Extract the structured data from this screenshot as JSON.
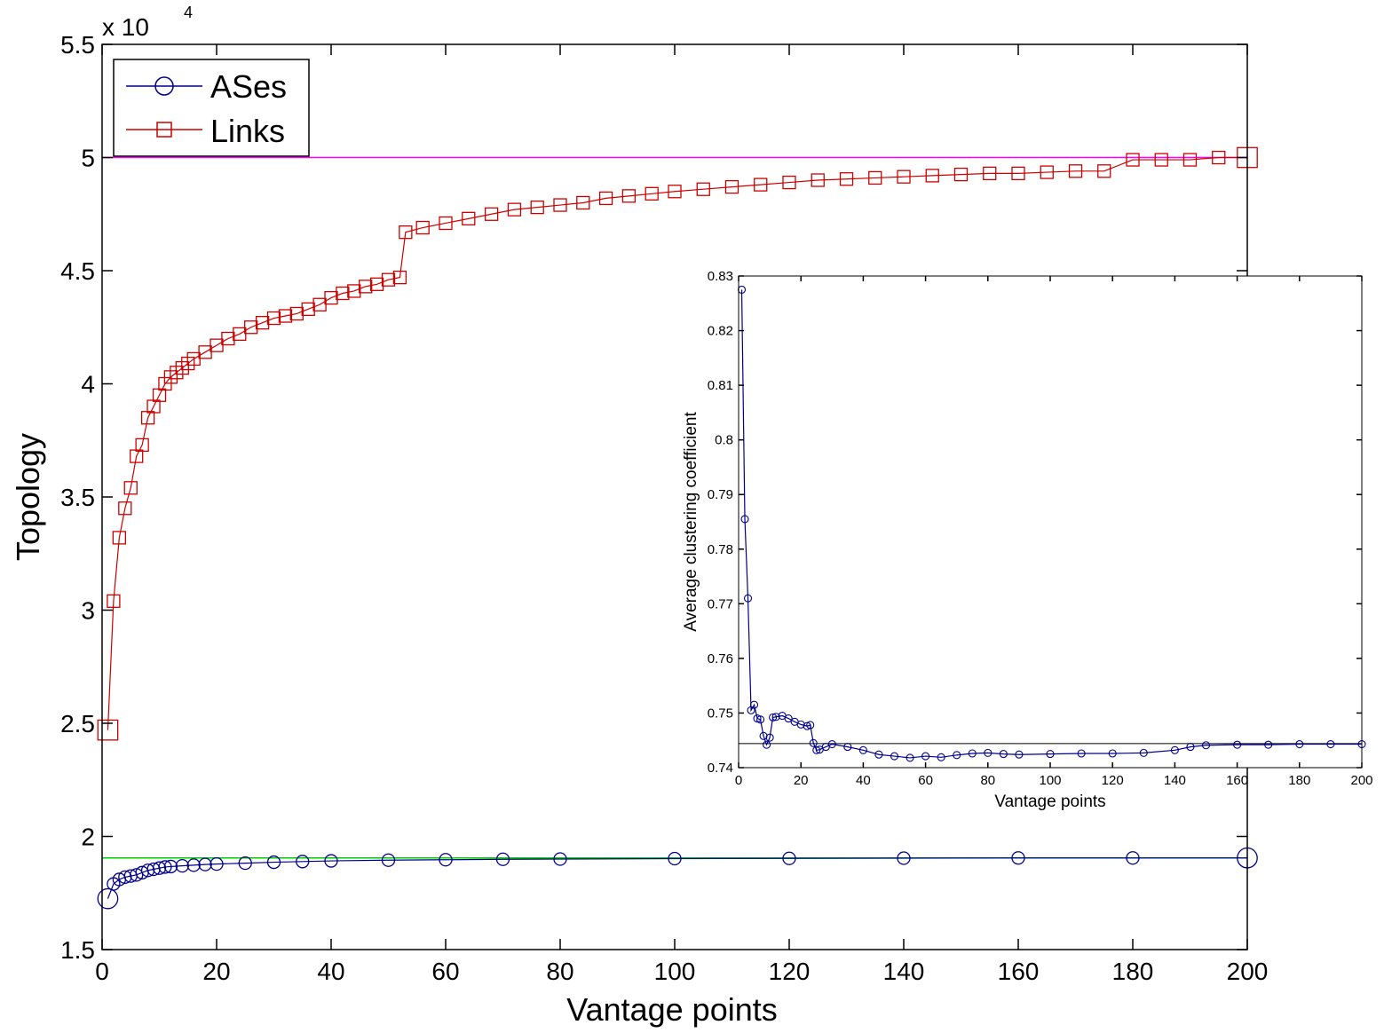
{
  "chart_data": [
    {
      "type": "line",
      "xlabel": "Vantage points",
      "ylabel": "Topology",
      "y_exponent_label": "x 10",
      "y_exponent_power": "4",
      "xlim": [
        0,
        200
      ],
      "ylim": [
        1.5,
        5.5
      ],
      "y_scale_factor": 10000,
      "xticks": [
        "0",
        "20",
        "40",
        "60",
        "80",
        "100",
        "120",
        "140",
        "160",
        "180",
        "200"
      ],
      "yticks": [
        "1.5",
        "2",
        "2.5",
        "3",
        "3.5",
        "4",
        "4.5",
        "5",
        "5.5"
      ],
      "legend_position": "top-left",
      "reference_lines": [
        {
          "value": 5.0,
          "color": "#ff00ff"
        },
        {
          "value": 1.905,
          "color": "#00cc00"
        }
      ],
      "series": [
        {
          "name": "ASes",
          "color": "#00008b",
          "marker": "circle",
          "x": [
            1,
            2,
            3,
            4,
            5,
            6,
            7,
            8,
            9,
            10,
            11,
            12,
            14,
            16,
            18,
            20,
            25,
            30,
            35,
            40,
            50,
            60,
            70,
            80,
            100,
            120,
            140,
            160,
            180,
            200
          ],
          "values": [
            1.725,
            1.79,
            1.81,
            1.82,
            1.825,
            1.83,
            1.84,
            1.85,
            1.855,
            1.86,
            1.865,
            1.867,
            1.87,
            1.873,
            1.876,
            1.878,
            1.882,
            1.886,
            1.889,
            1.892,
            1.895,
            1.897,
            1.899,
            1.9,
            1.902,
            1.903,
            1.904,
            1.905,
            1.905,
            1.905
          ]
        },
        {
          "name": "Links",
          "color": "#cc0000",
          "marker": "square",
          "x": [
            1,
            2,
            3,
            4,
            5,
            6,
            7,
            8,
            9,
            10,
            11,
            12,
            13,
            14,
            15,
            16,
            18,
            20,
            22,
            24,
            26,
            28,
            30,
            32,
            34,
            36,
            38,
            40,
            42,
            44,
            46,
            48,
            50,
            52,
            53,
            56,
            60,
            64,
            68,
            72,
            76,
            80,
            84,
            88,
            92,
            96,
            100,
            105,
            110,
            115,
            120,
            125,
            130,
            135,
            140,
            145,
            150,
            155,
            160,
            165,
            170,
            175,
            180,
            185,
            190,
            195,
            200
          ],
          "values": [
            2.47,
            3.04,
            3.32,
            3.45,
            3.54,
            3.68,
            3.73,
            3.85,
            3.9,
            3.95,
            4.0,
            4.03,
            4.05,
            4.07,
            4.09,
            4.11,
            4.14,
            4.17,
            4.2,
            4.22,
            4.25,
            4.27,
            4.29,
            4.3,
            4.31,
            4.33,
            4.35,
            4.38,
            4.4,
            4.41,
            4.43,
            4.44,
            4.46,
            4.47,
            4.67,
            4.69,
            4.71,
            4.73,
            4.75,
            4.77,
            4.78,
            4.79,
            4.8,
            4.82,
            4.83,
            4.84,
            4.85,
            4.86,
            4.87,
            4.88,
            4.89,
            4.9,
            4.905,
            4.91,
            4.915,
            4.92,
            4.925,
            4.93,
            4.93,
            4.935,
            4.94,
            4.94,
            4.99,
            4.99,
            4.99,
            5.0,
            5.0
          ]
        }
      ]
    },
    {
      "type": "line",
      "xlabel": "Vantage points",
      "ylabel": "Average clustering coefficient",
      "xlim": [
        0,
        200
      ],
      "ylim": [
        0.74,
        0.83
      ],
      "xticks": [
        "0",
        "20",
        "40",
        "60",
        "80",
        "100",
        "120",
        "140",
        "160",
        "180",
        "200"
      ],
      "yticks": [
        "0.74",
        "0.75",
        "0.76",
        "0.77",
        "0.78",
        "0.79",
        "0.8",
        "0.81",
        "0.82",
        "0.83"
      ],
      "reference_lines": [
        {
          "value": 0.7444,
          "color": "#000000"
        }
      ],
      "series": [
        {
          "color": "#00008b",
          "marker": "circle",
          "x": [
            1,
            2,
            3,
            4,
            5,
            6,
            7,
            8,
            9,
            10,
            11,
            12,
            14,
            16,
            18,
            20,
            22,
            23,
            24,
            25,
            26,
            28,
            30,
            35,
            40,
            45,
            50,
            55,
            60,
            65,
            70,
            75,
            80,
            85,
            90,
            100,
            110,
            120,
            130,
            140,
            145,
            150,
            160,
            170,
            180,
            190,
            200
          ],
          "values": [
            0.8275,
            0.7855,
            0.771,
            0.7505,
            0.7515,
            0.749,
            0.7488,
            0.7458,
            0.7442,
            0.7455,
            0.7492,
            0.7493,
            0.7495,
            0.749,
            0.7484,
            0.7479,
            0.7476,
            0.7478,
            0.7445,
            0.7432,
            0.7433,
            0.7438,
            0.7443,
            0.7438,
            0.7432,
            0.7424,
            0.7421,
            0.7418,
            0.7421,
            0.7419,
            0.7423,
            0.7426,
            0.7427,
            0.7425,
            0.7424,
            0.7425,
            0.7426,
            0.7426,
            0.7427,
            0.7432,
            0.7438,
            0.7441,
            0.7442,
            0.7442,
            0.7443,
            0.7443,
            0.7443
          ]
        }
      ]
    }
  ]
}
